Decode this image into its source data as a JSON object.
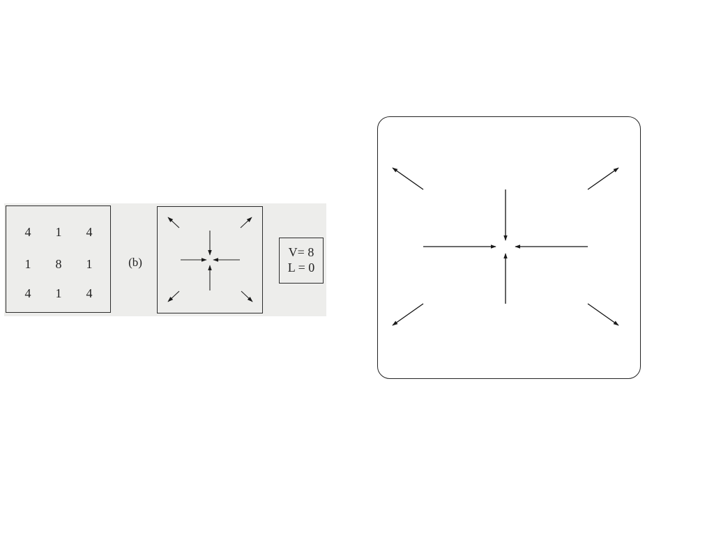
{
  "grid": {
    "rows": [
      [
        "4",
        "1",
        "4"
      ],
      [
        "1",
        "8",
        "1"
      ],
      [
        "4",
        "1",
        "4"
      ]
    ]
  },
  "label_b": "(b)",
  "values": {
    "v": "V= 8",
    "l": "L = 0"
  },
  "arrow_field": {
    "inward_directions": [
      "top",
      "bottom",
      "left",
      "right"
    ],
    "outward_directions": [
      "top-left",
      "top-right",
      "bottom-left",
      "bottom-right"
    ]
  }
}
